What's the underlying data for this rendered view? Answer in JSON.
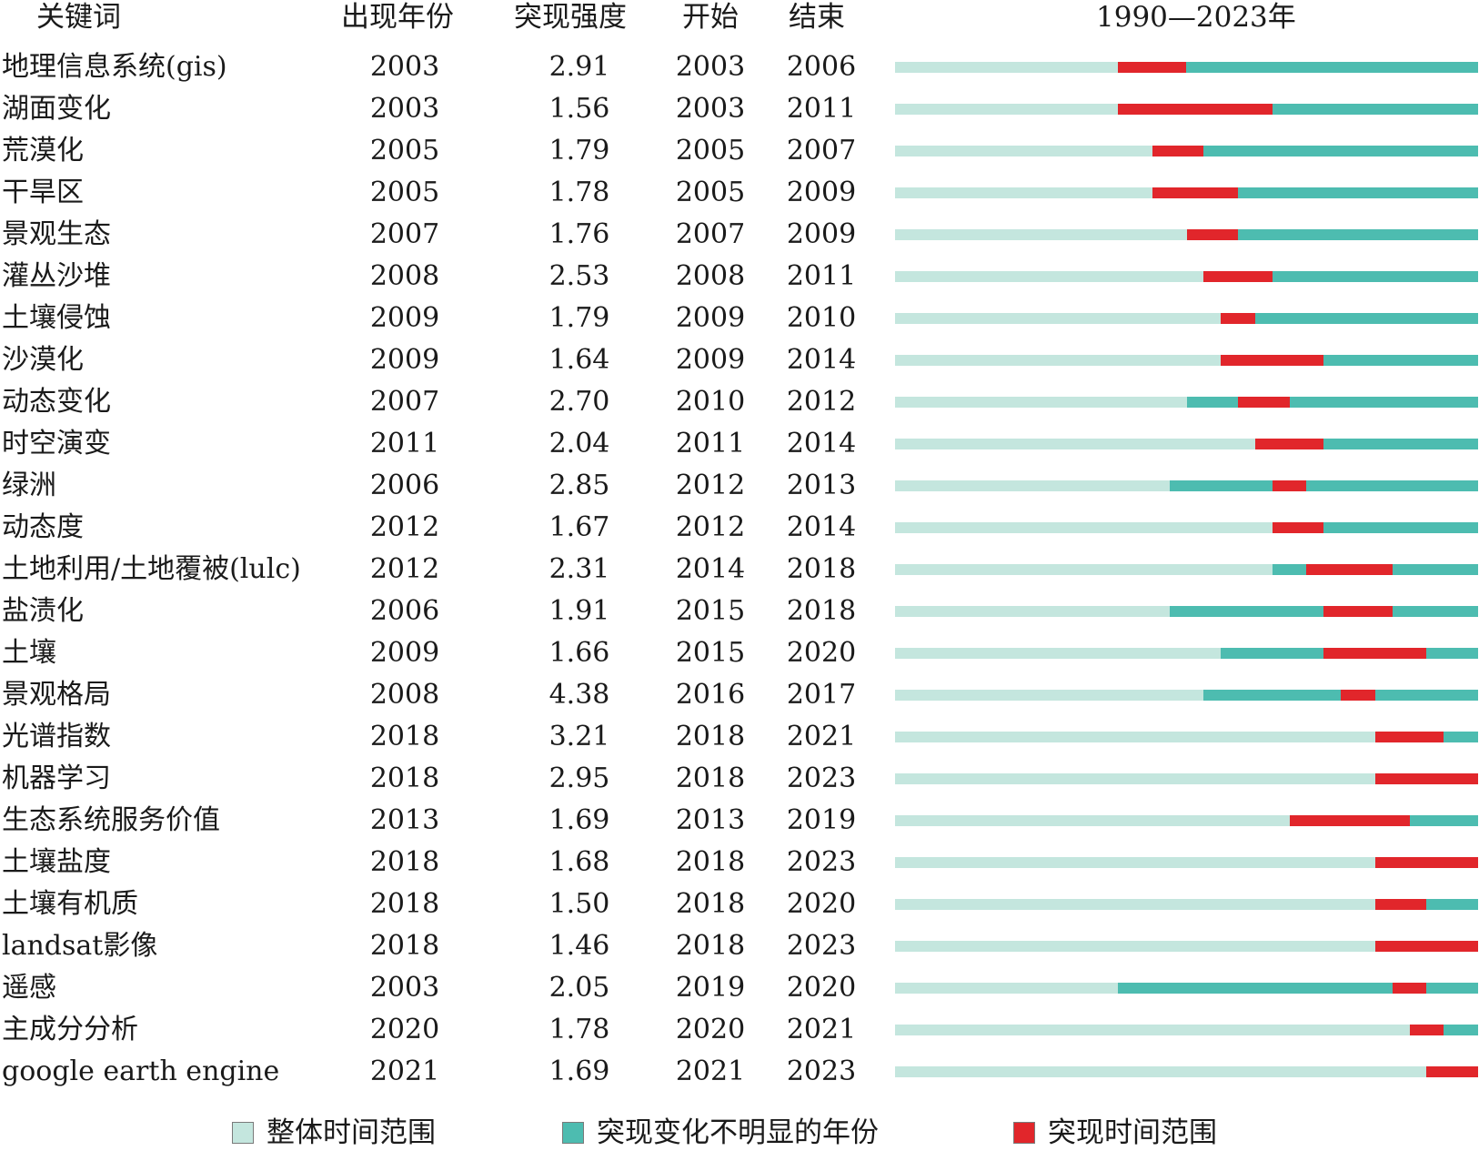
{
  "headers": {
    "keyword": "关键词",
    "year": "出现年份",
    "strength": "突现强度",
    "begin": "开始",
    "end": "结束",
    "range": "1990—2023年"
  },
  "colors": {
    "overall": "#c4e6de",
    "not_obvious": "#4dbcb0",
    "burst": "#e1262b"
  },
  "legend": [
    {
      "label": "整体时间范围",
      "color_key": "overall"
    },
    {
      "label": "突现变化不明显的年份",
      "color_key": "not_obvious"
    },
    {
      "label": "突现时间范围",
      "color_key": "burst"
    }
  ],
  "chart_data": {
    "type": "table",
    "x_range": [
      1990,
      2023
    ],
    "rows": [
      {
        "keyword": "地理信息系统(gis)",
        "year": "2003",
        "strength": "2.91",
        "begin": "2003",
        "end": "2006"
      },
      {
        "keyword": "湖面变化",
        "year": "2003",
        "strength": "1.56",
        "begin": "2003",
        "end": "2011"
      },
      {
        "keyword": "荒漠化",
        "year": "2005",
        "strength": "1.79",
        "begin": "2005",
        "end": "2007"
      },
      {
        "keyword": "干旱区",
        "year": "2005",
        "strength": "1.78",
        "begin": "2005",
        "end": "2009"
      },
      {
        "keyword": "景观生态",
        "year": "2007",
        "strength": "1.76",
        "begin": "2007",
        "end": "2009"
      },
      {
        "keyword": "灌丛沙堆",
        "year": "2008",
        "strength": "2.53",
        "begin": "2008",
        "end": "2011"
      },
      {
        "keyword": "土壤侵蚀",
        "year": "2009",
        "strength": "1.79",
        "begin": "2009",
        "end": "2010"
      },
      {
        "keyword": "沙漠化",
        "year": "2009",
        "strength": "1.64",
        "begin": "2009",
        "end": "2014"
      },
      {
        "keyword": "动态变化",
        "year": "2007",
        "strength": "2.70",
        "begin": "2010",
        "end": "2012"
      },
      {
        "keyword": "时空演变",
        "year": "2011",
        "strength": "2.04",
        "begin": "2011",
        "end": "2014"
      },
      {
        "keyword": "绿洲",
        "year": "2006",
        "strength": "2.85",
        "begin": "2012",
        "end": "2013"
      },
      {
        "keyword": "动态度",
        "year": "2012",
        "strength": "1.67",
        "begin": "2012",
        "end": "2014"
      },
      {
        "keyword": "土地利用/土地覆被(lulc)",
        "year": "2012",
        "strength": "2.31",
        "begin": "2014",
        "end": "2018"
      },
      {
        "keyword": "盐渍化",
        "year": "2006",
        "strength": "1.91",
        "begin": "2015",
        "end": "2018"
      },
      {
        "keyword": "土壤",
        "year": "2009",
        "strength": "1.66",
        "begin": "2015",
        "end": "2020"
      },
      {
        "keyword": "景观格局",
        "year": "2008",
        "strength": "4.38",
        "begin": "2016",
        "end": "2017"
      },
      {
        "keyword": "光谱指数",
        "year": "2018",
        "strength": "3.21",
        "begin": "2018",
        "end": "2021"
      },
      {
        "keyword": "机器学习",
        "year": "2018",
        "strength": "2.95",
        "begin": "2018",
        "end": "2023"
      },
      {
        "keyword": "生态系统服务价值",
        "year": "2013",
        "strength": "1.69",
        "begin": "2013",
        "end": "2019"
      },
      {
        "keyword": "土壤盐度",
        "year": "2018",
        "strength": "1.68",
        "begin": "2018",
        "end": "2023"
      },
      {
        "keyword": "土壤有机质",
        "year": "2018",
        "strength": "1.50",
        "begin": "2018",
        "end": "2020"
      },
      {
        "keyword": "landsat影像",
        "year": "2018",
        "strength": "1.46",
        "begin": "2018",
        "end": "2023"
      },
      {
        "keyword": "遥感",
        "year": "2003",
        "strength": "2.05",
        "begin": "2019",
        "end": "2020"
      },
      {
        "keyword": "主成分分析",
        "year": "2020",
        "strength": "1.78",
        "begin": "2020",
        "end": "2021"
      },
      {
        "keyword": "google earth engine",
        "year": "2021",
        "strength": "1.69",
        "begin": "2021",
        "end": "2023"
      }
    ]
  }
}
